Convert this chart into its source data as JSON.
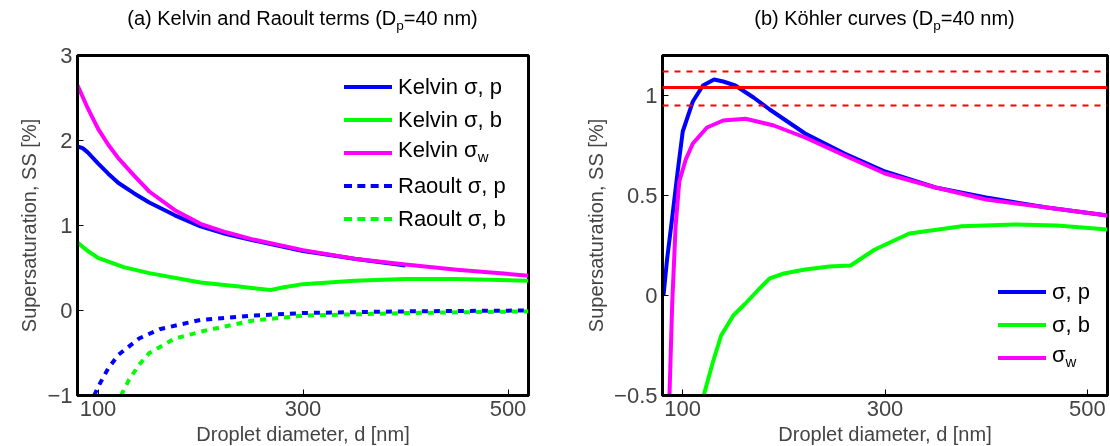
{
  "chart_data": [
    {
      "type": "line",
      "title": "(a) Kelvin and Raoult terms (D$_{p}$=40 nm)",
      "xlabel": "Droplet diameter, d [nm]",
      "ylabel": "Supersaturation, SS [%]",
      "xlim": [
        80,
        520
      ],
      "xticks": [
        100,
        300,
        500
      ],
      "ylim": [
        -1,
        3
      ],
      "yticks": [
        -1,
        0,
        1,
        2,
        3
      ],
      "grid": false,
      "legend": "top right",
      "series": [
        {
          "name": "Kelvin σ, p",
          "color": "#0000ff",
          "line_style": "solid",
          "x": [
            80,
            85,
            90,
            100,
            110,
            120,
            135,
            150,
            175,
            200,
            225,
            250,
            300,
            350,
            400
          ],
          "values": [
            1.93,
            1.91,
            1.86,
            1.73,
            1.61,
            1.5,
            1.38,
            1.27,
            1.12,
            0.99,
            0.9,
            0.83,
            0.7,
            0.61,
            0.53
          ]
        },
        {
          "name": "Kelvin σ, b",
          "color": "#00ff00",
          "line_style": "solid",
          "x": [
            80,
            90,
            100,
            125,
            150,
            200,
            240,
            268,
            280,
            300,
            350,
            400,
            450,
            520
          ],
          "values": [
            0.8,
            0.7,
            0.62,
            0.51,
            0.44,
            0.33,
            0.28,
            0.24,
            0.27,
            0.31,
            0.35,
            0.37,
            0.37,
            0.35
          ]
        },
        {
          "name": "Kelvin σ$_{w}$",
          "color": "#ff00ff",
          "line_style": "solid",
          "x": [
            80,
            90,
            100,
            110,
            120,
            135,
            150,
            175,
            200,
            225,
            250,
            300,
            350,
            400,
            450,
            520
          ],
          "values": [
            2.65,
            2.38,
            2.14,
            1.95,
            1.79,
            1.59,
            1.4,
            1.18,
            1.02,
            0.92,
            0.84,
            0.71,
            0.61,
            0.54,
            0.48,
            0.41
          ]
        },
        {
          "name": "Raoult σ, p",
          "color": "#0000ff",
          "line_style": "dashed",
          "x": [
            96.3,
            100,
            110,
            120,
            140,
            160,
            200,
            250,
            300,
            400,
            520
          ],
          "values": [
            -1,
            -0.9,
            -0.68,
            -0.52,
            -0.33,
            -0.22,
            -0.11,
            -0.06,
            -0.03,
            -0.01,
            0
          ]
        },
        {
          "name": "Raoult σ, b",
          "color": "#00ff00",
          "line_style": "dashed",
          "x": [
            122.5,
            130,
            140,
            150,
            175,
            200,
            250,
            300,
            400,
            520
          ],
          "values": [
            -1,
            -0.82,
            -0.64,
            -0.5,
            -0.33,
            -0.25,
            -0.12,
            -0.06,
            -0.03,
            -0.01
          ]
        }
      ]
    },
    {
      "type": "line",
      "title": "(b) Köhler curves (D$_{p}$=40 nm)",
      "xlabel": "Droplet diameter, d [nm]",
      "ylabel": "Supersaturation, SS [%]",
      "xlim": [
        80,
        520
      ],
      "xticks": [
        100,
        300,
        500
      ],
      "ylim": [
        -0.5,
        1.2
      ],
      "yticks": [
        -0.5,
        0,
        0.5,
        1
      ],
      "grid": false,
      "legend": "bottom right",
      "series": [
        {
          "name": "σ, p",
          "color": "#0000ff",
          "line_style": "solid",
          "x": [
            81,
            84.5,
            89.6,
            95,
            100,
            110,
            120,
            131,
            140,
            152,
            170,
            186,
            221,
            260,
            300,
            350,
            400,
            460,
            520
          ],
          "values": [
            0,
            0.18,
            0.39,
            0.62,
            0.82,
            0.97,
            1.05,
            1.08,
            1.07,
            1.05,
            0.99,
            0.93,
            0.81,
            0.71,
            0.62,
            0.54,
            0.49,
            0.44,
            0.4
          ]
        },
        {
          "name": "σ, b",
          "color": "#00ff00",
          "line_style": "solid",
          "x": [
            120.7,
            130,
            138,
            150,
            162,
            175,
            186,
            200,
            221,
            245,
            266,
            278,
            290,
            324,
            376,
            428,
            470,
            520
          ],
          "values": [
            -0.5,
            -0.33,
            -0.2,
            -0.1,
            -0.04,
            0.03,
            0.086,
            0.11,
            0.13,
            0.145,
            0.15,
            0.19,
            0.23,
            0.31,
            0.346,
            0.355,
            0.35,
            0.33
          ]
        },
        {
          "name": "σ$_{w}$",
          "color": "#ff00ff",
          "line_style": "solid",
          "x": [
            86.9,
            89.6,
            93,
            96.6,
            103,
            110,
            124,
            140,
            162,
            190,
            221,
            260,
            300,
            350,
            400,
            460,
            520
          ],
          "values": [
            -0.5,
            -0.04,
            0.35,
            0.57,
            0.68,
            0.76,
            0.84,
            0.875,
            0.884,
            0.85,
            0.79,
            0.7,
            0.61,
            0.54,
            0.48,
            0.44,
            0.4
          ]
        }
      ],
      "ref_lines": [
        {
          "axis": "y",
          "value": 1.04,
          "color": "#ff0000",
          "line_style": "solid"
        },
        {
          "axis": "y",
          "value": 1.12,
          "color": "#ff0000",
          "line_style": "dashed"
        },
        {
          "axis": "y",
          "value": 0.95,
          "color": "#ff0000",
          "line_style": "dashed"
        }
      ]
    }
  ]
}
